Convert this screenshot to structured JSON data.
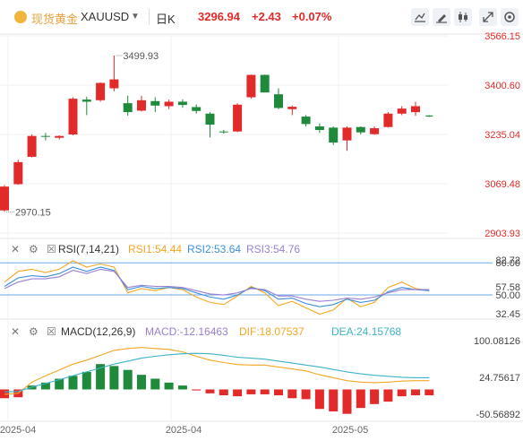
{
  "header": {
    "symbol_name": "现货黄金",
    "symbol_code": "XAUUSD",
    "dropdown_icon": "chevron-down-icon",
    "period": "日K",
    "price": "3296.94",
    "change": "+2.43",
    "change_pct": "+0.07%",
    "toolbar_icons": [
      "indicator-icon",
      "draw-icon",
      "candle-type-icon",
      "fullscreen-icon",
      "settings-icon"
    ]
  },
  "colors": {
    "up": "#e22a2a",
    "down": "#1f8a3b",
    "rsi1": "#f5a623",
    "rsi2": "#3b8fd6",
    "rsi3": "#9a7fd1",
    "macd_dif": "#f5a623",
    "macd_dea": "#3cb3c9",
    "ref_line": "#6aa8e8",
    "price_axis": "#e22a2a"
  },
  "main_chart": {
    "y_axis_labels": [
      "3566.15",
      "3400.60",
      "3235.04",
      "3069.48",
      "2903.93"
    ],
    "high_label": "3499.93",
    "low_label": "2970.15"
  },
  "rsi_panel": {
    "label": "RSI(7,14,21)",
    "rsi1": "RSI1:54.44",
    "rsi2": "RSI2:53.64",
    "rsi3": "RSI3:54.76",
    "y_axis_labels": [
      "80.00",
      "82.72",
      "57.58",
      "50.00",
      "32.45"
    ]
  },
  "macd_panel": {
    "label": "MACD(12,26,9)",
    "macd": "MACD:-12.16463",
    "dif": "DIF:18.07537",
    "dea": "DEA:24.15768",
    "y_axis_labels": [
      "100.08126",
      "24.75617",
      "-50.56892"
    ]
  },
  "x_axis_labels": [
    "2025-04",
    "2025-04",
    "2025-05"
  ],
  "chart_data": {
    "type": "candlestick",
    "candles": [
      {
        "o": 2980,
        "h": 3065,
        "l": 2975,
        "c": 3060
      },
      {
        "o": 3068,
        "h": 3150,
        "l": 3066,
        "c": 3142
      },
      {
        "o": 3160,
        "h": 3235,
        "l": 3158,
        "c": 3230
      },
      {
        "o": 3230,
        "h": 3240,
        "l": 3215,
        "c": 3228
      },
      {
        "o": 3224,
        "h": 3232,
        "l": 3218,
        "c": 3230
      },
      {
        "o": 3235,
        "h": 3360,
        "l": 3232,
        "c": 3355
      },
      {
        "o": 3352,
        "h": 3362,
        "l": 3300,
        "c": 3345
      },
      {
        "o": 3350,
        "h": 3410,
        "l": 3345,
        "c": 3408
      },
      {
        "o": 3390,
        "h": 3499.93,
        "l": 3380,
        "c": 3420
      },
      {
        "o": 3340,
        "h": 3365,
        "l": 3298,
        "c": 3310
      },
      {
        "o": 3315,
        "h": 3365,
        "l": 3312,
        "c": 3350
      },
      {
        "o": 3347,
        "h": 3360,
        "l": 3310,
        "c": 3332
      },
      {
        "o": 3330,
        "h": 3352,
        "l": 3320,
        "c": 3345
      },
      {
        "o": 3345,
        "h": 3353,
        "l": 3325,
        "c": 3334
      },
      {
        "o": 3327,
        "h": 3336,
        "l": 3305,
        "c": 3314
      },
      {
        "o": 3305,
        "h": 3310,
        "l": 3225,
        "c": 3268
      },
      {
        "o": 3245,
        "h": 3250,
        "l": 3238,
        "c": 3244
      },
      {
        "o": 3245,
        "h": 3340,
        "l": 3243,
        "c": 3335
      },
      {
        "o": 3360,
        "h": 3436,
        "l": 3355,
        "c": 3435
      },
      {
        "o": 3435,
        "h": 3436,
        "l": 3376,
        "c": 3376
      },
      {
        "o": 3370,
        "h": 3390,
        "l": 3320,
        "c": 3324
      },
      {
        "o": 3320,
        "h": 3332,
        "l": 3300,
        "c": 3328
      },
      {
        "o": 3295,
        "h": 3300,
        "l": 3262,
        "c": 3270
      },
      {
        "o": 3262,
        "h": 3272,
        "l": 3240,
        "c": 3250
      },
      {
        "o": 3258,
        "h": 3262,
        "l": 3200,
        "c": 3208
      },
      {
        "o": 3215,
        "h": 3262,
        "l": 3180,
        "c": 3258
      },
      {
        "o": 3260,
        "h": 3262,
        "l": 3235,
        "c": 3242
      },
      {
        "o": 3236,
        "h": 3262,
        "l": 3234,
        "c": 3256
      },
      {
        "o": 3260,
        "h": 3310,
        "l": 3258,
        "c": 3305
      },
      {
        "o": 3305,
        "h": 3330,
        "l": 3300,
        "c": 3322
      },
      {
        "o": 3310,
        "h": 3345,
        "l": 3298,
        "c": 3330
      },
      {
        "o": 3297,
        "h": 3300,
        "l": 3294,
        "c": 3296.94
      }
    ],
    "rsi": {
      "rsi1": [
        62,
        72,
        74,
        71,
        74,
        82,
        76,
        79,
        76,
        52,
        56,
        54,
        57,
        55,
        48,
        43,
        41,
        49,
        58,
        52,
        40,
        44,
        38,
        32,
        36,
        47,
        39,
        43,
        57,
        62,
        56,
        54
      ],
      "rsi2": [
        58,
        66,
        68,
        67,
        70,
        76,
        72,
        76,
        73,
        55,
        58,
        56,
        57,
        56,
        52,
        48,
        46,
        50,
        57,
        54,
        46,
        47,
        42,
        39,
        41,
        46,
        43,
        45,
        53,
        57,
        55,
        54
      ],
      "rsi3": [
        56,
        62,
        65,
        65,
        67,
        73,
        70,
        74,
        72,
        57,
        59,
        58,
        58,
        57,
        54,
        51,
        50,
        52,
        56,
        55,
        49,
        49,
        46,
        44,
        45,
        47,
        46,
        48,
        52,
        55,
        55,
        55
      ]
    },
    "macd": {
      "hist": [
        -18,
        -16,
        8,
        14,
        22,
        28,
        36,
        52,
        48,
        40,
        30,
        22,
        14,
        8,
        -2,
        -8,
        -12,
        -14,
        -10,
        -10,
        -12,
        -18,
        -20,
        -40,
        -45,
        -50,
        -38,
        -30,
        -25,
        -14,
        -12,
        -12
      ],
      "dif": [
        -10,
        -8,
        15,
        28,
        40,
        52,
        60,
        70,
        80,
        84,
        86,
        84,
        82,
        77,
        68,
        60,
        55,
        51,
        50,
        50,
        46,
        42,
        38,
        30,
        24,
        18,
        15,
        14,
        15,
        17,
        18,
        18
      ],
      "dea": [
        -5,
        -4,
        5,
        12,
        20,
        28,
        36,
        44,
        52,
        58,
        64,
        68,
        71,
        73,
        74,
        73,
        70,
        66,
        64,
        62,
        58,
        54,
        50,
        46,
        41,
        36,
        32,
        29,
        27,
        25,
        24,
        24
      ]
    }
  }
}
